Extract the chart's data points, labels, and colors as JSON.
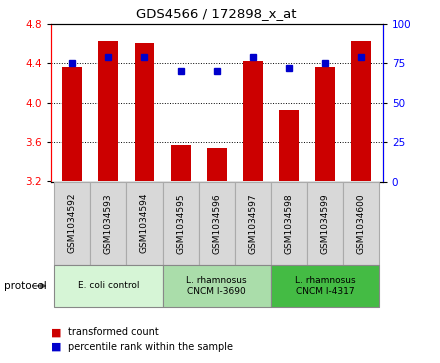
{
  "title": "GDS4566 / 172898_x_at",
  "samples": [
    "GSM1034592",
    "GSM1034593",
    "GSM1034594",
    "GSM1034595",
    "GSM1034596",
    "GSM1034597",
    "GSM1034598",
    "GSM1034599",
    "GSM1034600"
  ],
  "red_values": [
    4.36,
    4.62,
    4.6,
    3.57,
    3.54,
    4.42,
    3.92,
    4.36,
    4.62
  ],
  "blue_values": [
    75,
    79,
    79,
    70,
    70,
    79,
    72,
    75,
    79
  ],
  "ylim_left": [
    3.2,
    4.8
  ],
  "ylim_right": [
    0,
    100
  ],
  "yticks_left": [
    3.2,
    3.6,
    4.0,
    4.4,
    4.8
  ],
  "yticks_right": [
    0,
    25,
    50,
    75,
    100
  ],
  "bar_bottom": 3.2,
  "bar_color": "#cc0000",
  "dot_color": "#0000cc",
  "group_colors": [
    "#d6f5d6",
    "#aaddaa",
    "#44bb44"
  ],
  "group_labels": [
    "E. coli control",
    "L. rhamnosus\nCNCM I-3690",
    "L. rhamnosus\nCNCM I-4317"
  ],
  "group_ranges": [
    [
      0,
      3
    ],
    [
      3,
      6
    ],
    [
      6,
      9
    ]
  ],
  "legend_items": [
    {
      "label": "transformed count",
      "color": "#cc0000"
    },
    {
      "label": "percentile rank within the sample",
      "color": "#0000cc"
    }
  ],
  "bg_color": "#ffffff"
}
